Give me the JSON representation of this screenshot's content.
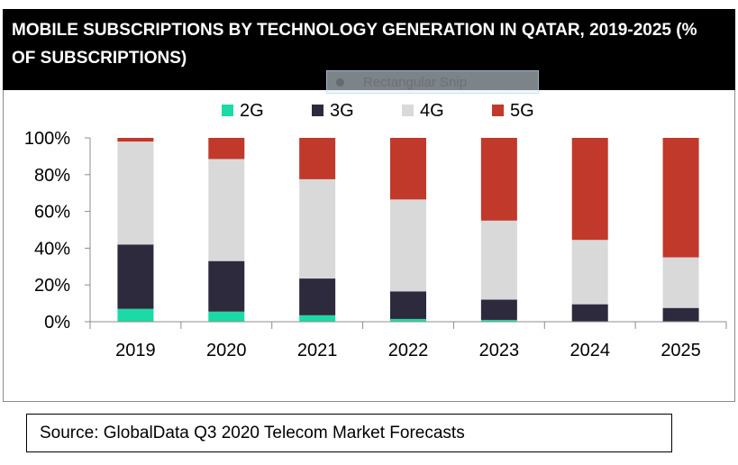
{
  "title": "MOBILE SUBSCRIPTIONS BY TECHNOLOGY GENERATION IN QATAR, 2019-2025 (% OF SUBSCRIPTIONS)",
  "overlay": {
    "label": "Rectangular Snip"
  },
  "source": "Source: GlobalData Q3 2020 Telecom Market Forecasts",
  "chart_data": {
    "type": "bar",
    "stacked": true,
    "title": "MOBILE SUBSCRIPTIONS BY TECHNOLOGY GENERATION IN QATAR, 2019-2025 (% OF SUBSCRIPTIONS)",
    "xlabel": "",
    "ylabel": "",
    "categories": [
      "2019",
      "2020",
      "2021",
      "2022",
      "2023",
      "2024",
      "2025"
    ],
    "series": [
      {
        "name": "2G",
        "color": "#1bdaa6",
        "values": [
          7,
          5.5,
          3.5,
          1.5,
          1,
          0,
          0
        ]
      },
      {
        "name": "3G",
        "color": "#2e2a3d",
        "values": [
          35,
          27.5,
          20,
          15,
          11,
          9.5,
          7.5
        ]
      },
      {
        "name": "4G",
        "color": "#d9d9d9",
        "values": [
          56,
          55.5,
          54,
          50,
          43,
          35,
          27.5
        ]
      },
      {
        "name": "5G",
        "color": "#c0392b",
        "values": [
          2,
          11.5,
          22.5,
          33.5,
          45,
          55.5,
          65
        ]
      }
    ],
    "ylim": [
      0,
      100
    ],
    "yticks": [
      "0%",
      "20%",
      "40%",
      "60%",
      "80%",
      "100%"
    ],
    "grid": false,
    "legend_position": "top"
  }
}
